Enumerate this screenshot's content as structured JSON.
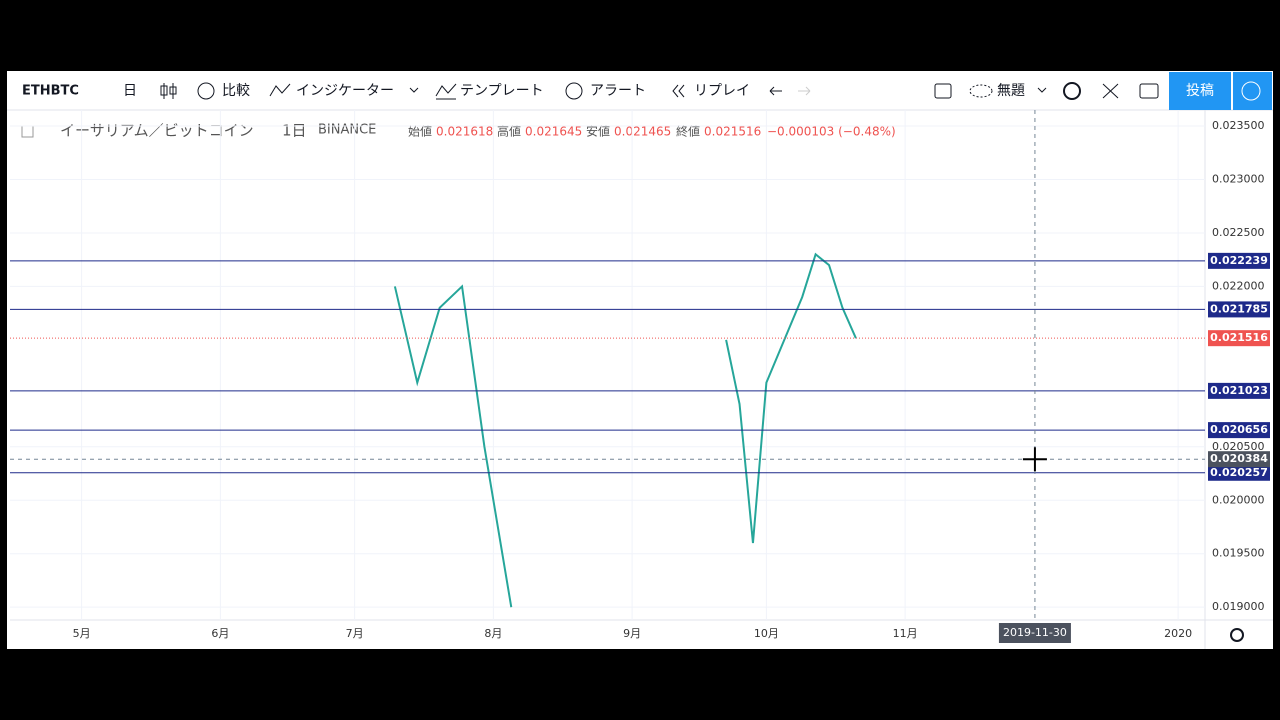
{
  "toolbar": {
    "symbol": "ETHBTC",
    "interval": "日",
    "compare": "比較",
    "indicators": "インジケーター",
    "templates": "テンプレート",
    "alert": "アラート",
    "replay": "リプレイ",
    "layout_name": "無題",
    "publish": "投稿"
  },
  "legend": {
    "name": "イーサリアム／ビットコイン",
    "interval": "1日",
    "exchange": "BINANCE",
    "open_label": "始値",
    "open": "0.021618",
    "high_label": "高値",
    "high": "0.021645",
    "low_label": "安値",
    "low": "0.021465",
    "close_label": "終値",
    "close": "0.021516",
    "change": "−0.000103 (−0.48%)"
  },
  "chart_data": {
    "type": "line",
    "xlim": [
      "2019-04-15",
      "2020-01-07"
    ],
    "xticks": [
      {
        "value": "2019-05-01",
        "label": "5月"
      },
      {
        "value": "2019-06-01",
        "label": "6月"
      },
      {
        "value": "2019-07-01",
        "label": "7月"
      },
      {
        "value": "2019-08-01",
        "label": "8月"
      },
      {
        "value": "2019-09-01",
        "label": "9月"
      },
      {
        "value": "2019-10-01",
        "label": "10月"
      },
      {
        "value": "2019-11-01",
        "label": "11月"
      },
      {
        "value": "2020-01-01",
        "label": "2020"
      }
    ],
    "ylim": [
      0.01888,
      0.02365
    ],
    "yticks": [
      {
        "value": 0.0235,
        "label": "0.023500"
      },
      {
        "value": 0.023,
        "label": "0.023000"
      },
      {
        "value": 0.0225,
        "label": "0.022500"
      },
      {
        "value": 0.022,
        "label": "0.022000"
      },
      {
        "value": 0.0205,
        "label": "0.020500"
      },
      {
        "value": 0.02,
        "label": "0.020000"
      },
      {
        "value": 0.0195,
        "label": "0.019500"
      },
      {
        "value": 0.019,
        "label": "0.019000"
      }
    ],
    "grid": true,
    "x": [
      "2019-07-10",
      "2019-07-15",
      "2019-07-20",
      "2019-07-25",
      "2019-07-30",
      "2019-08-05",
      "2019-08-20",
      "2019-09-22",
      "2019-09-25",
      "2019-09-28",
      "2019-10-01",
      "2019-10-05",
      "2019-10-09",
      "2019-10-12",
      "2019-10-15",
      "2019-10-18",
      "2019-10-21"
    ],
    "series": [
      {
        "color": "#26a69a",
        "values": [
          0.022,
          0.0211,
          0.0218,
          0.022,
          0.0205,
          0.019,
          null,
          0.0215,
          0.0209,
          0.0196,
          0.0211,
          0.0215,
          0.0219,
          0.0223,
          0.0222,
          0.0218,
          0.021516
        ]
      }
    ],
    "hlines": [
      {
        "value": 0.022239,
        "label": "0.022239",
        "color": "#1e2a8a"
      },
      {
        "value": 0.021785,
        "label": "0.021785",
        "color": "#1e2a8a"
      },
      {
        "value": 0.021516,
        "label": "0.021516",
        "color": "#ef5350"
      },
      {
        "value": 0.021023,
        "label": "0.021023",
        "color": "#1e2a8a"
      },
      {
        "value": 0.020656,
        "label": "0.020656",
        "color": "#1e2a8a"
      },
      {
        "value": 0.020257,
        "label": "0.020257",
        "color": "#1e2a8a"
      }
    ],
    "crosshair": {
      "x": "2019-11-30",
      "x_label": "2019-11-30",
      "y": 0.020384,
      "y_label": "0.020384"
    }
  }
}
